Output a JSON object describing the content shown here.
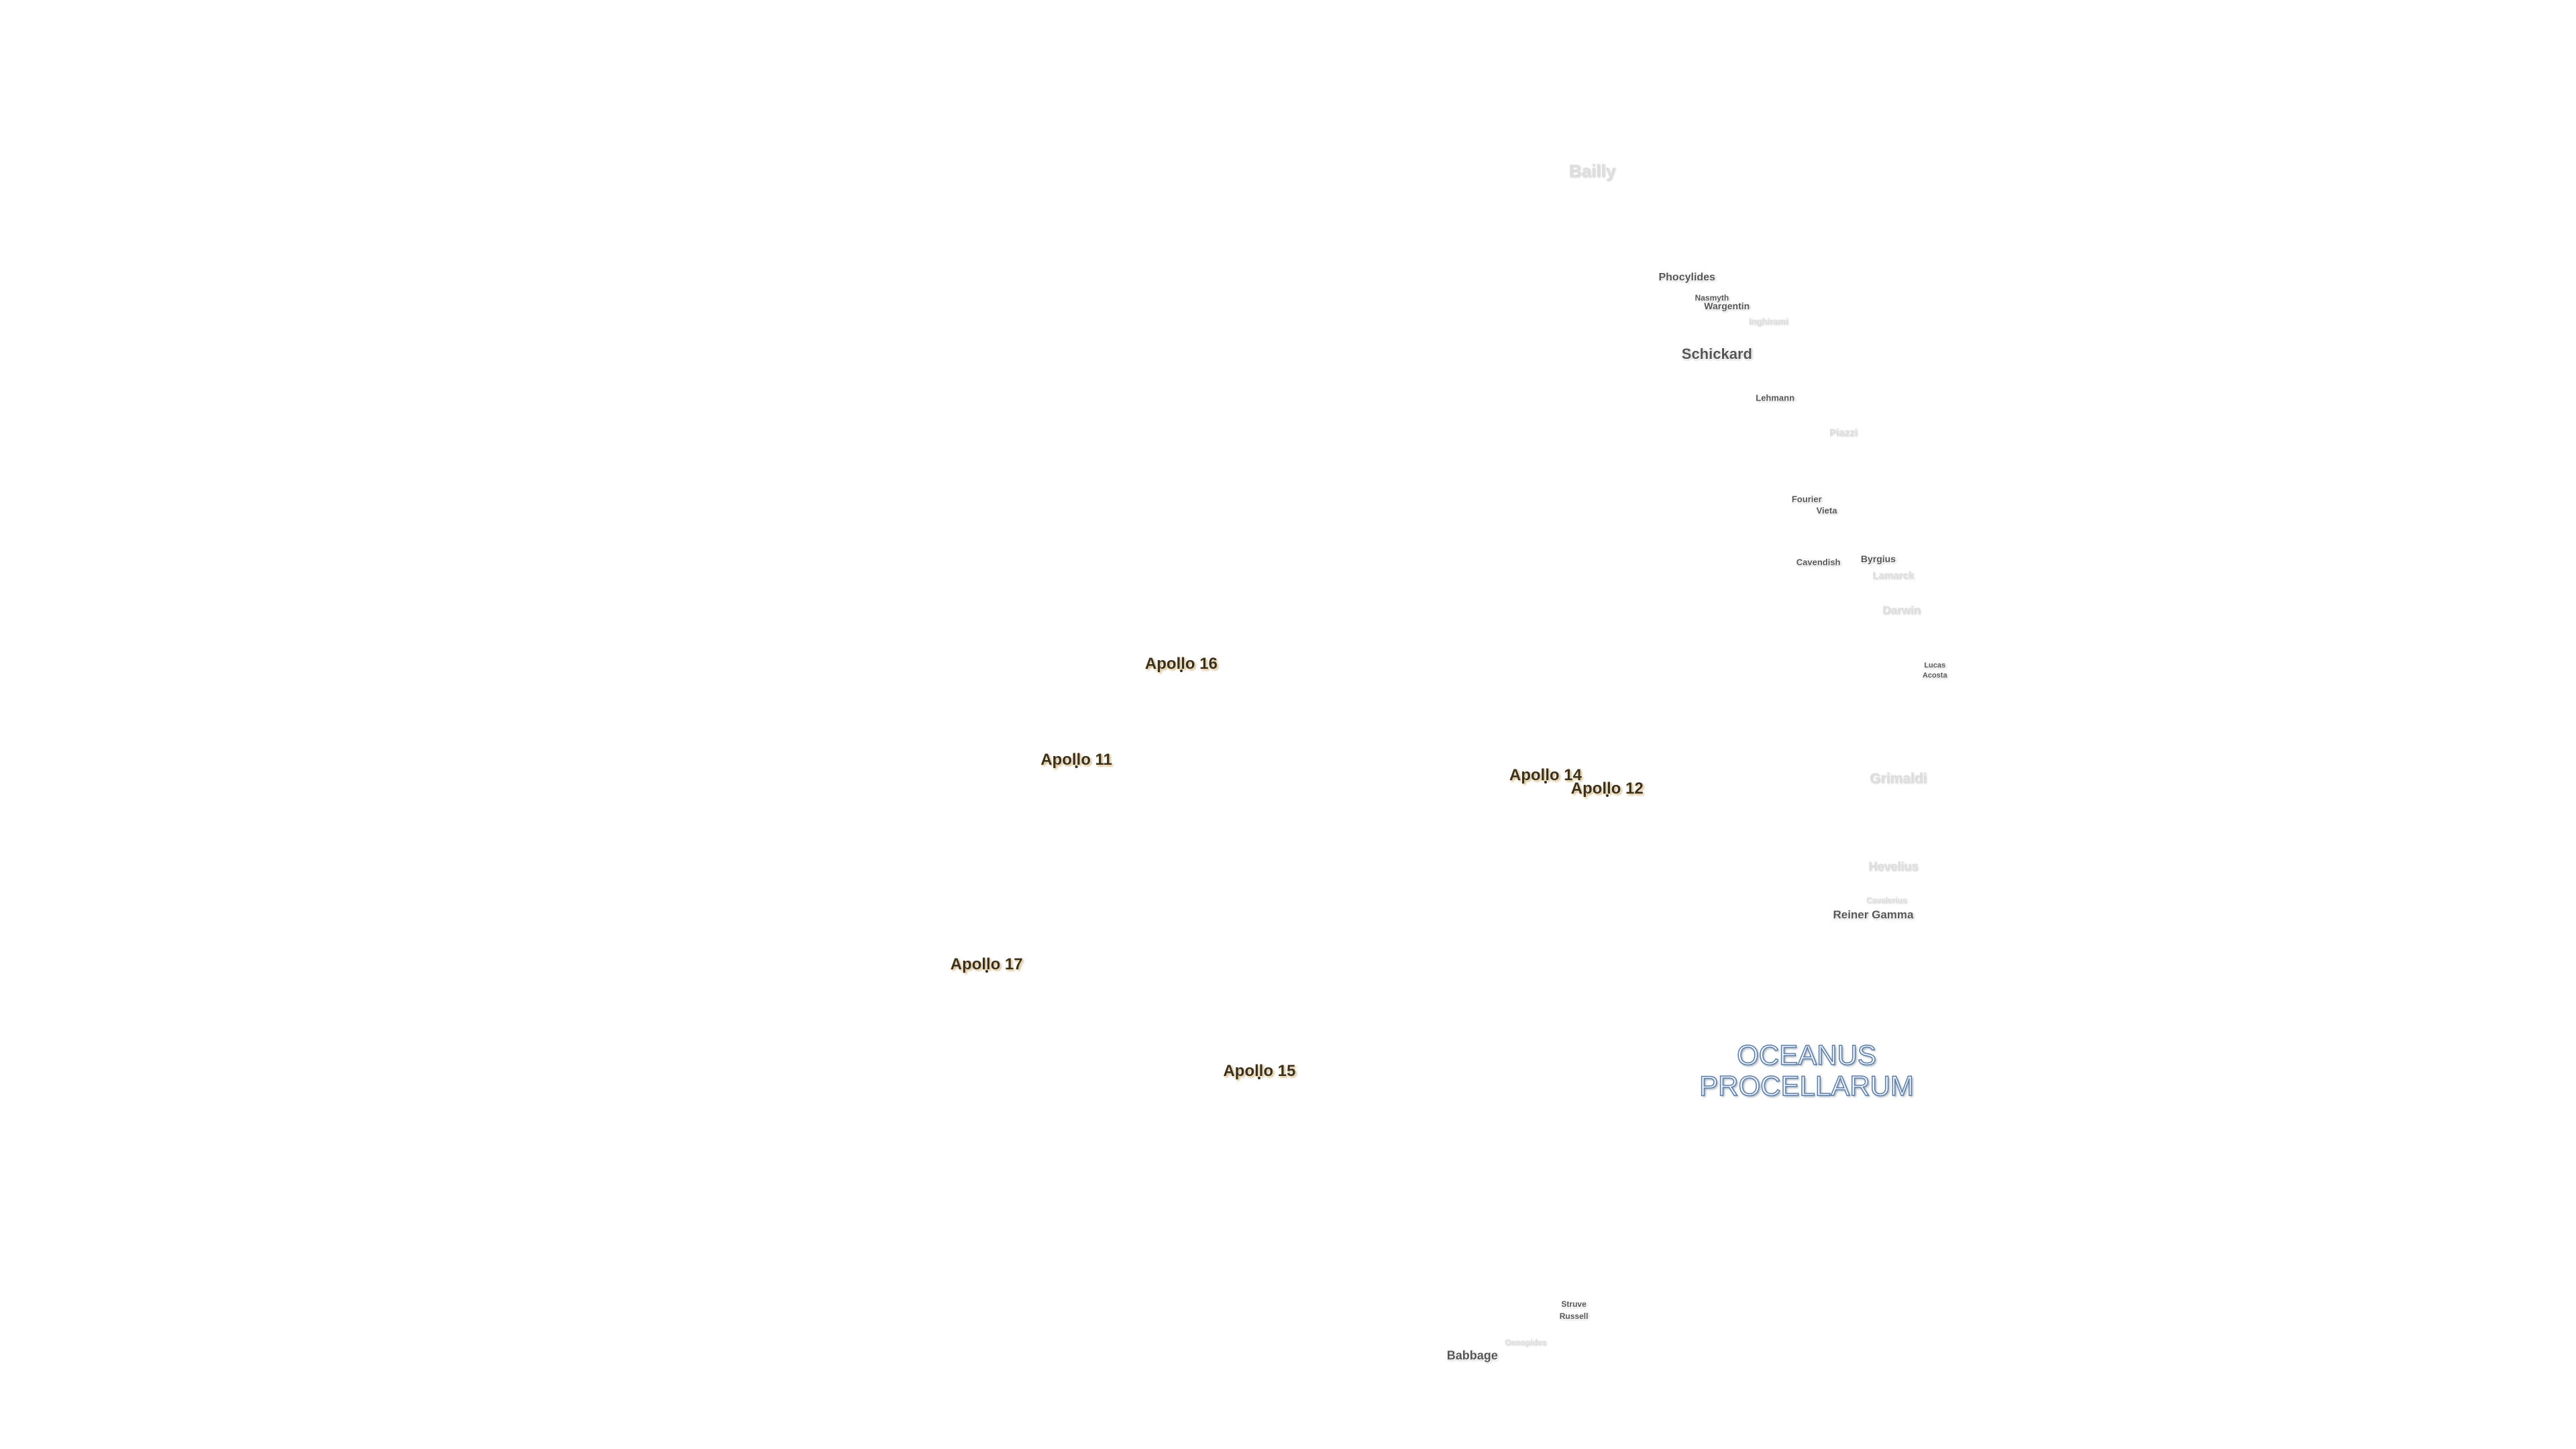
{
  "labels": [
    "Bailly",
    "Phocylides",
    "Nasmyth",
    "Wargentin",
    "Inghirami",
    "Schickard",
    "Lehmann",
    "Piazzi",
    "Fourier",
    "Vieta",
    "Cavendish",
    "Byrgius",
    "Lamarck",
    "Darwin",
    "Lucas",
    "Acosta",
    "Grimaldi",
    "Hevelius",
    "Cavalerius",
    "Reiner Gamma",
    "Struve",
    "Russell",
    "Oenopides",
    "Babbage"
  ],
  "apollo_sites": [
    "Apollo 16",
    "Apollo 11",
    "Apollo 14",
    "Apollo 12",
    "Apollo 17",
    "Apollo 15"
  ],
  "mare": {
    "line1": "OCEANUS",
    "line2": "PROCELLARUM"
  }
}
